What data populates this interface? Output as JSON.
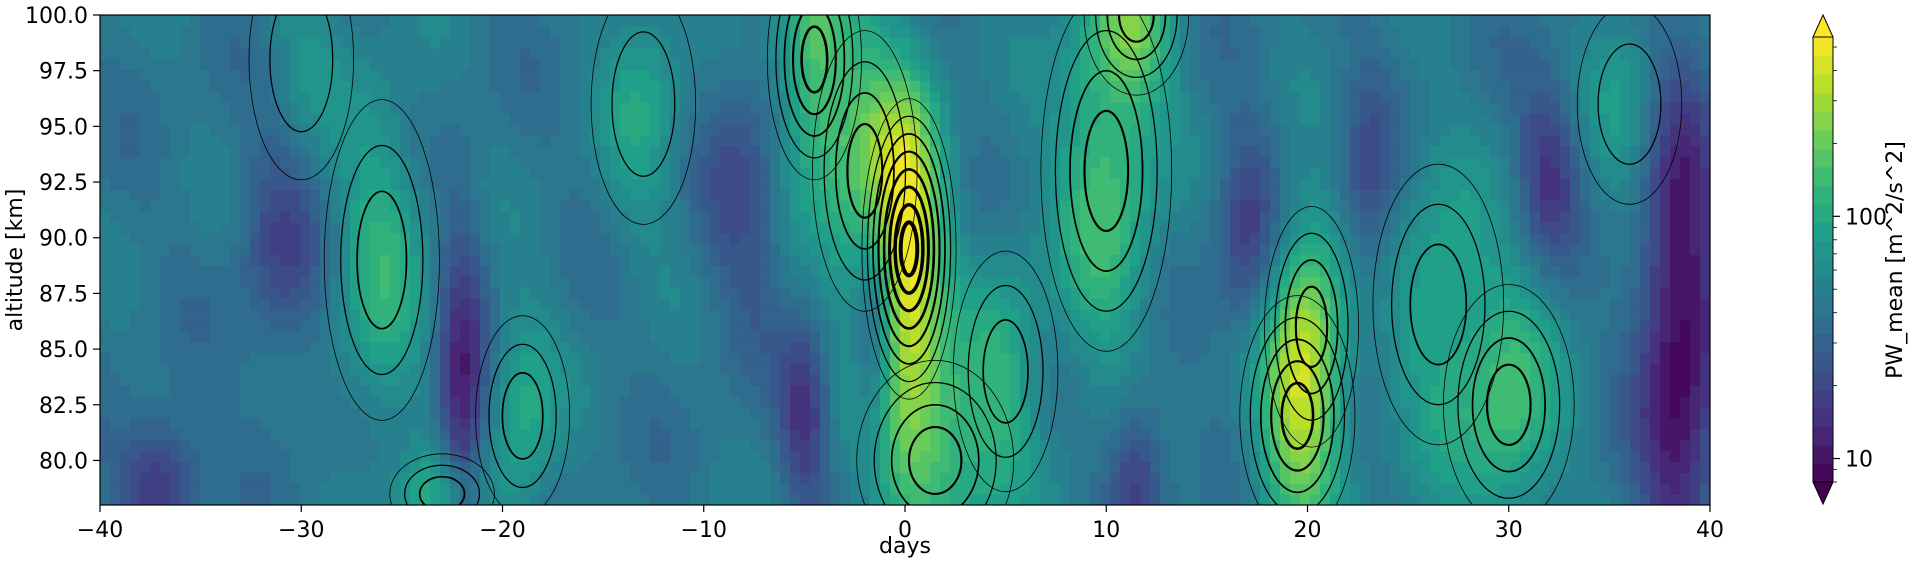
{
  "chart_data": {
    "type": "heatmap",
    "xlabel": "days",
    "ylabel": "altitude [km]",
    "xlim": [
      -40,
      40
    ],
    "ylim": [
      78,
      100
    ],
    "x_ticks": [
      "−40",
      "−30",
      "−20",
      "−10",
      "0",
      "10",
      "20",
      "30",
      "40"
    ],
    "y_ticks": [
      "80.0",
      "82.5",
      "85.0",
      "87.5",
      "90.0",
      "92.5",
      "95.0",
      "97.5",
      "100.0"
    ],
    "x_tick_values": [
      -40,
      -30,
      -20,
      -10,
      0,
      10,
      20,
      30,
      40
    ],
    "y_tick_values": [
      80.0,
      82.5,
      85.0,
      87.5,
      90.0,
      92.5,
      95.0,
      97.5,
      100.0
    ],
    "colorbar": {
      "label": "PW_mean [m^2/s^2]",
      "scale": "log",
      "range": [
        8,
        550
      ],
      "ticks": [
        "10",
        "100"
      ],
      "tick_values": [
        10,
        100
      ],
      "extend": "both",
      "colormap": "viridis"
    },
    "background_value": 42,
    "features": [
      {
        "day": 0.2,
        "alt": 89.5,
        "value": 480,
        "width": 1.8,
        "height": 7.5
      },
      {
        "day": -4.5,
        "alt": 98,
        "value": 170,
        "width": 1.8,
        "height": 6
      },
      {
        "day": -2,
        "alt": 93,
        "value": 140,
        "width": 2,
        "height": 7
      },
      {
        "day": 1.5,
        "alt": 80,
        "value": 150,
        "width": 3,
        "height": 5
      },
      {
        "day": 10,
        "alt": 93,
        "value": 150,
        "width": 2.5,
        "height": 9
      },
      {
        "day": 11.5,
        "alt": 100,
        "value": 130,
        "width": 2,
        "height": 4
      },
      {
        "day": 19.5,
        "alt": 82,
        "value": 190,
        "width": 2.2,
        "height": 6
      },
      {
        "day": 20.2,
        "alt": 86,
        "value": 130,
        "width": 1.8,
        "height": 6
      },
      {
        "day": 30,
        "alt": 82.5,
        "value": 140,
        "width": 2.5,
        "height": 6
      },
      {
        "day": -26,
        "alt": 89,
        "value": 110,
        "width": 2.2,
        "height": 8
      },
      {
        "day": -19,
        "alt": 82,
        "value": 100,
        "width": 1.8,
        "height": 5
      },
      {
        "day": -23,
        "alt": 78.5,
        "value": 110,
        "width": 2,
        "height": 2
      },
      {
        "day": 26.5,
        "alt": 87,
        "value": 95,
        "width": 2.5,
        "height": 7
      },
      {
        "day": -13,
        "alt": 96,
        "value": 85,
        "width": 2,
        "height": 6
      },
      {
        "day": 36,
        "alt": 96,
        "value": 80,
        "width": 2,
        "height": 5
      },
      {
        "day": -30,
        "alt": 98,
        "value": 65,
        "width": 2,
        "height": 6
      },
      {
        "day": 5,
        "alt": 84,
        "value": 90,
        "width": 2,
        "height": 6
      },
      {
        "day": -22,
        "alt": 82,
        "value": 11,
        "width": 1.2,
        "height": 8
      },
      {
        "day": -1.5,
        "alt": 86,
        "value": 14,
        "width": 1,
        "height": 5
      },
      {
        "day": 11.5,
        "alt": 79.5,
        "value": 16,
        "width": 1.5,
        "height": 4
      },
      {
        "day": 17,
        "alt": 90,
        "value": 18,
        "width": 1.5,
        "height": 5
      },
      {
        "day": -5,
        "alt": 82,
        "value": 15,
        "width": 1.2,
        "height": 4
      },
      {
        "day": 38.5,
        "alt": 86,
        "value": 8,
        "width": 2,
        "height": 12
      },
      {
        "day": 32,
        "alt": 93,
        "value": 16,
        "width": 1.5,
        "height": 4
      },
      {
        "day": -37,
        "alt": 79,
        "value": 14,
        "width": 2,
        "height": 3
      },
      {
        "day": -31,
        "alt": 90,
        "value": 20,
        "width": 2,
        "height": 6
      },
      {
        "day": 23,
        "alt": 92,
        "value": 20,
        "width": 1.5,
        "height": 5
      },
      {
        "day": -8,
        "alt": 92,
        "value": 22,
        "width": 2,
        "height": 6
      }
    ]
  }
}
